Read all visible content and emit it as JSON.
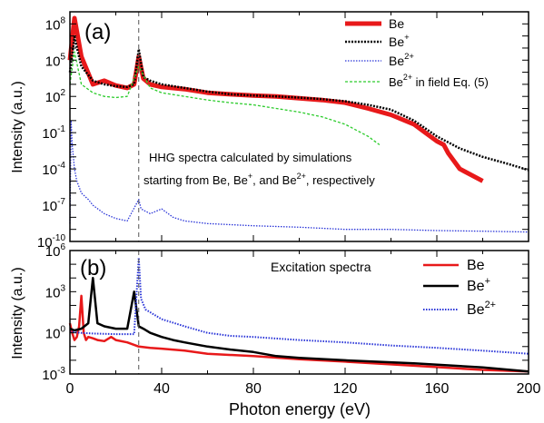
{
  "chart_data": [
    {
      "panel_label": "(a)",
      "type": "line",
      "ylabel": "Intensity (a.u.)",
      "yscale": "log",
      "ylim": [
        1e-10,
        1000000000.0
      ],
      "xlim": [
        0,
        200
      ],
      "ytick_labels": [
        "10^-10",
        "10^-7",
        "10^-4",
        "10^-1",
        "10^2",
        "10^5",
        "10^8"
      ],
      "annotation": [
        "HHG spectra calculated by simulations",
        "starting from Be, Be+, and Be2+, respectively"
      ],
      "vline_x": 30,
      "legend_position": "top-right",
      "series": [
        {
          "name": "Be",
          "color": "#e8191a",
          "x": [
            0,
            2,
            5,
            10,
            15,
            20,
            25,
            28,
            30,
            32,
            35,
            40,
            50,
            60,
            70,
            80,
            90,
            100,
            110,
            120,
            130,
            140,
            150,
            155,
            160,
            163,
            165,
            170,
            180
          ],
          "y": [
            100000.0,
            300000000.0,
            200000.0,
            1000.0,
            2000.0,
            800.0,
            500.0,
            1000.0,
            200000.0,
            3000.0,
            1000.0,
            600.0,
            400.0,
            200.0,
            150.0,
            120.0,
            100.0,
            70.0,
            50.0,
            30.0,
            10.0,
            3.0,
            0.5,
            0.1,
            0.02,
            0.01,
            0.002,
            0.0001,
            1e-05
          ]
        },
        {
          "name": "Be+",
          "color": "#000000",
          "x": [
            0,
            2,
            5,
            10,
            15,
            20,
            25,
            28,
            30,
            32,
            35,
            40,
            50,
            60,
            70,
            80,
            90,
            100,
            110,
            120,
            130,
            140,
            150,
            160,
            170,
            180,
            190,
            200
          ],
          "y": [
            10000.0,
            8000000.0,
            30000.0,
            2000.0,
            1000.0,
            700.0,
            600.0,
            1000.0,
            800000.0,
            4000.0,
            2000.0,
            1000.0,
            500.0,
            250.0,
            150.0,
            120.0,
            100.0,
            80.0,
            60.0,
            40.0,
            20.0,
            8.0,
            1.0,
            0.05,
            0.005,
            0.001,
            0.0003,
            8e-05
          ]
        },
        {
          "name": "Be2+",
          "color": "#2a35d8",
          "x": [
            0,
            0.5,
            1,
            2,
            3,
            5,
            8,
            10,
            15,
            20,
            25,
            30,
            31,
            35,
            40,
            45,
            50,
            60,
            80,
            100,
            120,
            140,
            160,
            180,
            200
          ],
          "y": [
            3e-09,
            1.0,
            0.01,
            0.0001,
            1e-05,
            1e-06,
            3e-07,
            1e-07,
            2e-08,
            8e-09,
            5e-09,
            3e-07,
            5e-08,
            2e-08,
            5e-08,
            1e-08,
            5e-09,
            3e-09,
            2e-09,
            1.5e-09,
            1e-09,
            1e-09,
            8e-10,
            7e-10,
            6e-10
          ]
        },
        {
          "name": "Be2+ in field Eq. (5)",
          "color": "#2ccc2c",
          "x": [
            0,
            2,
            5,
            10,
            15,
            20,
            25,
            30,
            35,
            40,
            50,
            60,
            70,
            80,
            90,
            100,
            110,
            120,
            130,
            135
          ],
          "y": [
            1000.0,
            500000.0,
            1000.0,
            200.0,
            100.0,
            80.0,
            100.0,
            30000.0,
            500.0,
            200.0,
            100.0,
            50.0,
            30.0,
            20.0,
            10.0,
            5.0,
            2.0,
            0.5,
            0.05,
            0.01
          ]
        }
      ]
    },
    {
      "panel_label": "(b)",
      "type": "line",
      "xlabel": "Photon energy (eV)",
      "ylabel": "Intensity (a.u.)",
      "yscale": "log",
      "ylim": [
        0.001,
        1000000.0
      ],
      "xlim": [
        0,
        200
      ],
      "ytick_labels": [
        "10^-3",
        "10^0",
        "10^3",
        "10^6"
      ],
      "xtick_labels": [
        "0",
        "40",
        "80",
        "120",
        "160",
        "200"
      ],
      "annotation": [
        "Excitation spectra"
      ],
      "vline_x": 30,
      "legend_position": "top-right",
      "series": [
        {
          "name": "Be",
          "color": "#e8191a",
          "x": [
            0,
            1,
            2,
            3,
            4,
            5,
            6,
            7,
            8,
            10,
            12,
            15,
            18,
            20,
            25,
            30,
            35,
            40,
            50,
            60,
            80,
            100,
            120,
            150,
            180,
            200
          ],
          "y": [
            5,
            1,
            0.3,
            0.5,
            3,
            500.0,
            1.0,
            0.3,
            0.5,
            0.4,
            0.3,
            0.25,
            0.5,
            0.3,
            0.2,
            0.1,
            0.08,
            0.07,
            0.05,
            0.03,
            0.02,
            0.012,
            0.008,
            0.004,
            0.002,
            0.0015
          ]
        },
        {
          "name": "Be+",
          "color": "#000000",
          "x": [
            0,
            2,
            5,
            8,
            10,
            12,
            15,
            20,
            25,
            28,
            30,
            32,
            35,
            40,
            45,
            50,
            60,
            70,
            80,
            90,
            100,
            120,
            150,
            180,
            200
          ],
          "y": [
            2,
            1.5,
            2,
            5,
            10000.0,
            5,
            3,
            2,
            2,
            1000.0,
            3,
            2,
            1,
            0.5,
            0.3,
            0.2,
            0.1,
            0.06,
            0.04,
            0.02,
            0.015,
            0.01,
            0.006,
            0.003,
            0.0015
          ]
        },
        {
          "name": "Be2+",
          "color": "#2a35d8",
          "x": [
            0,
            5,
            10,
            20,
            28,
            30,
            31,
            33,
            40,
            50,
            60,
            70,
            80,
            100,
            120,
            140,
            160,
            180,
            200
          ],
          "y": [
            1.2,
            1,
            0.9,
            0.8,
            0.8,
            300000.0,
            300.0,
            50,
            10,
            3,
            1,
            0.6,
            0.5,
            0.3,
            0.2,
            0.12,
            0.08,
            0.05,
            0.03
          ]
        }
      ]
    }
  ]
}
